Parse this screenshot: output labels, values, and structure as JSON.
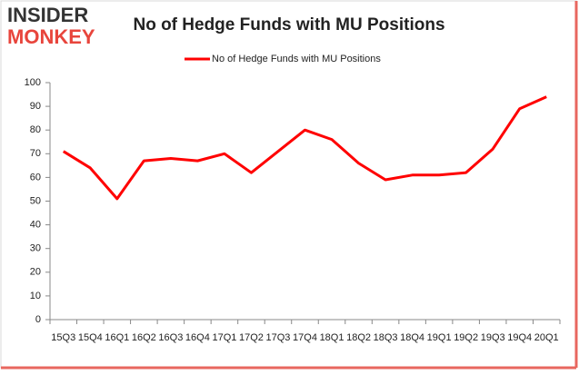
{
  "logo": {
    "top": "INSIDER",
    "bottom": "MONKEY"
  },
  "chart_data": {
    "type": "line",
    "title": "No of Hedge Funds with MU Positions",
    "categories": [
      "15Q3",
      "15Q4",
      "16Q1",
      "16Q2",
      "16Q3",
      "16Q4",
      "17Q1",
      "17Q2",
      "17Q3",
      "17Q4",
      "18Q1",
      "18Q2",
      "18Q3",
      "18Q4",
      "19Q1",
      "19Q2",
      "19Q3",
      "19Q4",
      "20Q1"
    ],
    "series": [
      {
        "name": "No of Hedge Funds with MU Positions",
        "color": "#ff0000",
        "values": [
          71,
          64,
          51,
          67,
          68,
          67,
          70,
          62,
          71,
          80,
          76,
          66,
          59,
          61,
          61,
          62,
          72,
          89,
          94
        ]
      }
    ],
    "ylim": [
      0,
      100
    ],
    "yticks": [
      0,
      10,
      20,
      30,
      40,
      50,
      60,
      70,
      80,
      90,
      100
    ],
    "grid": false,
    "legend": "top"
  }
}
